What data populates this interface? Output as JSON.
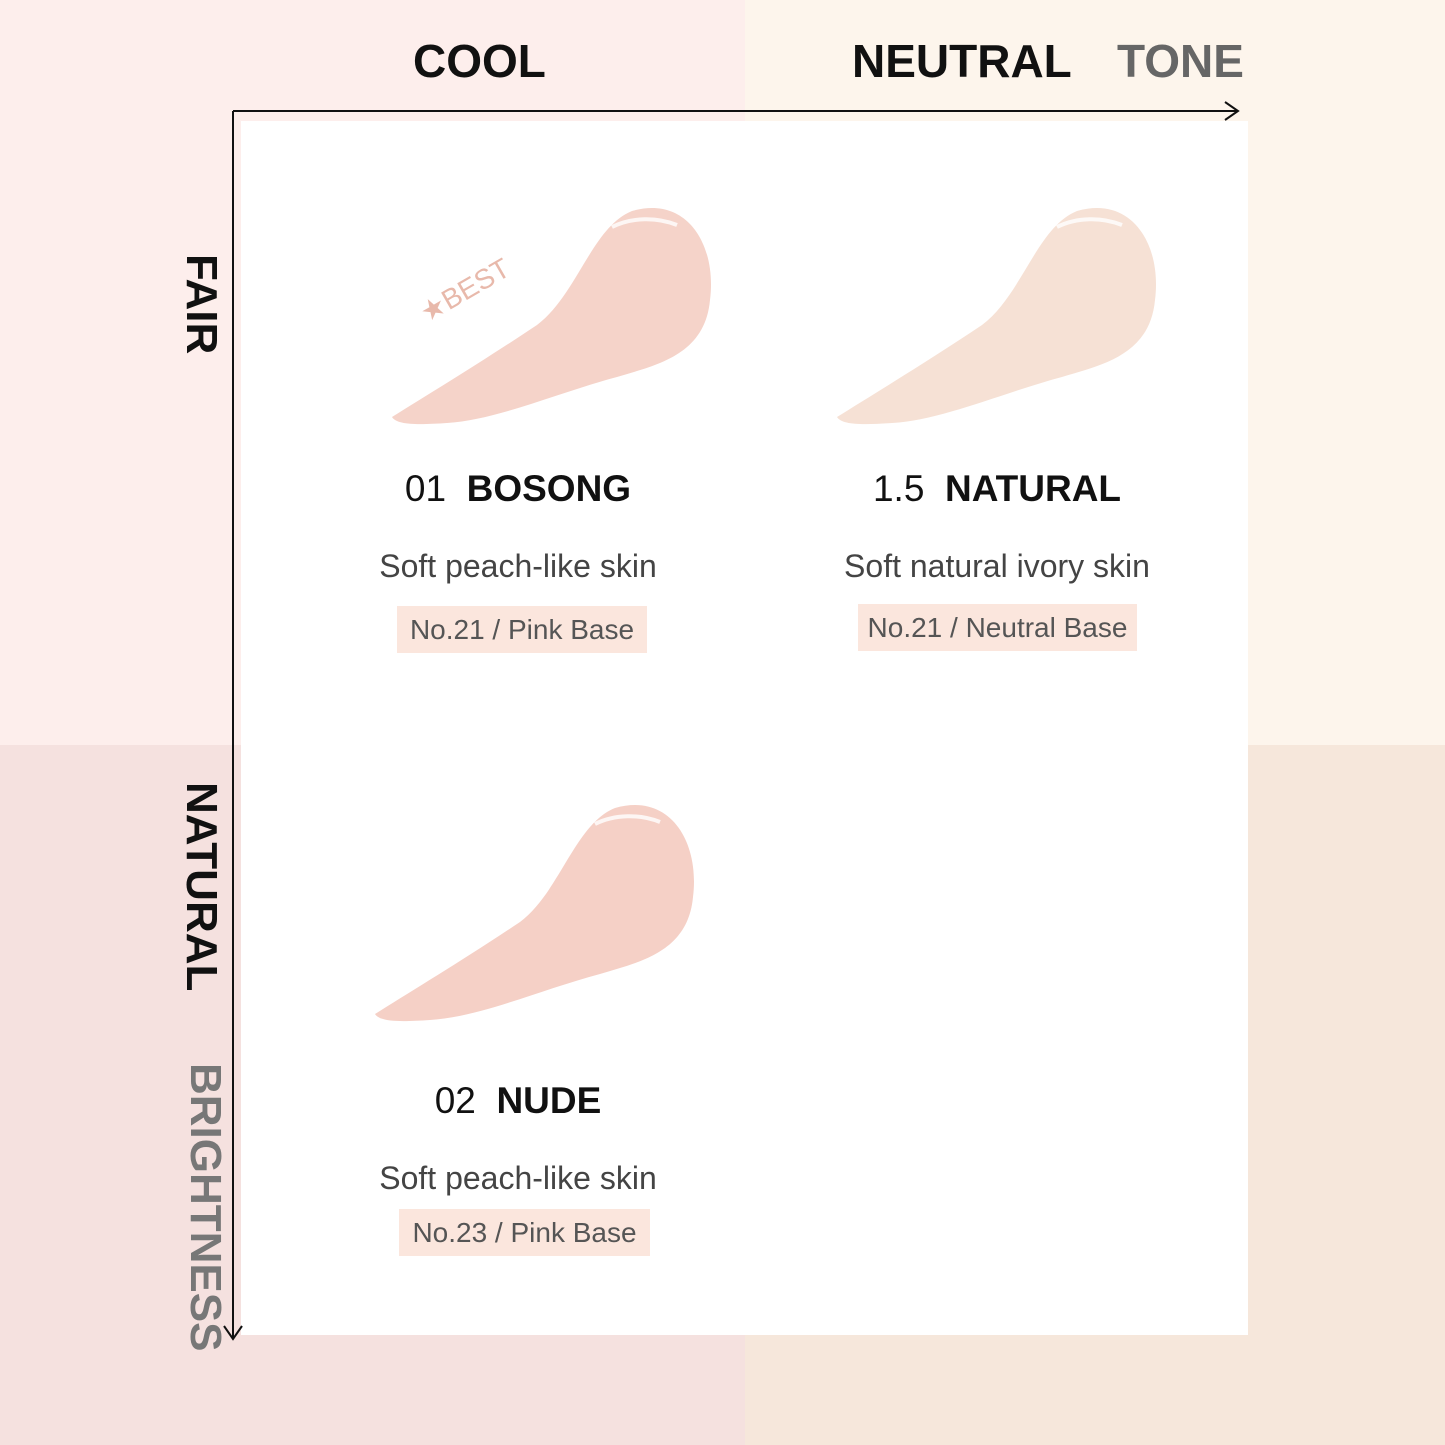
{
  "colors": {
    "q_tl": "#fdeeec",
    "q_tr": "#fdf5ec",
    "q_bl": "#f5e1df",
    "q_br": "#f6e7db",
    "tag_bg": "#fbe6dd"
  },
  "axes": {
    "x_labels": [
      "COOL",
      "NEUTRAL"
    ],
    "x_title": "TONE",
    "y_labels": [
      "FAIR",
      "NATURAL"
    ],
    "y_title": "BRIGHTNESS"
  },
  "shades": [
    {
      "number": "01",
      "name": "BOSONG",
      "desc": "Soft peach-like skin",
      "tag": "No.21 / Pink Base",
      "badge": "★BEST",
      "color": "#f5d3c9"
    },
    {
      "number": "1.5",
      "name": "NATURAL",
      "desc": "Soft natural ivory skin",
      "tag": "No.21 / Neutral Base",
      "color": "#f6e1d5"
    },
    {
      "number": "02",
      "name": "NUDE",
      "desc": "Soft peach-like skin",
      "tag": "No.23 / Pink Base",
      "color": "#f5d0c6"
    }
  ]
}
